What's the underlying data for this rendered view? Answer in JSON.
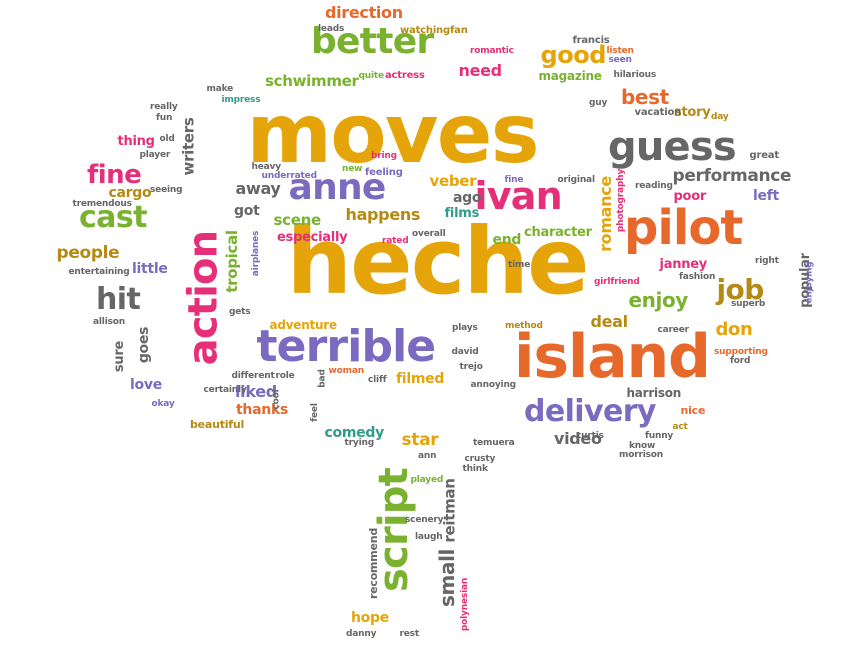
{
  "palette": {
    "yellow": "#e5a50a",
    "gold": "#b58a12",
    "orange": "#e6692b",
    "green": "#7ab230",
    "purple": "#7b6bc0",
    "pink": "#e52f78",
    "gray": "#666666",
    "teal": "#2f9c8c",
    "brown": "#a07a2a"
  },
  "words": [
    {
      "text": "moves",
      "color": "yellow"
    },
    {
      "text": "heche",
      "color": "yellow"
    },
    {
      "text": "island",
      "color": "orange"
    },
    {
      "text": "action",
      "color": "pink"
    },
    {
      "text": "pilot",
      "color": "orange"
    },
    {
      "text": "terrible",
      "color": "purple"
    },
    {
      "text": "better",
      "color": "green"
    },
    {
      "text": "guess",
      "color": "gray"
    },
    {
      "text": "anne",
      "color": "purple"
    },
    {
      "text": "ivan",
      "color": "pink"
    },
    {
      "text": "delivery",
      "color": "purple"
    },
    {
      "text": "script",
      "color": "green"
    },
    {
      "text": "fine",
      "color": "pink"
    },
    {
      "text": "cast",
      "color": "green"
    },
    {
      "text": "hit",
      "color": "gray"
    },
    {
      "text": "job",
      "color": "gold"
    },
    {
      "text": "good",
      "color": "yellow"
    },
    {
      "text": "direction",
      "color": "orange"
    },
    {
      "text": "schwimmer",
      "color": "green"
    },
    {
      "text": "need",
      "color": "pink"
    },
    {
      "text": "magazine",
      "color": "green"
    },
    {
      "text": "best",
      "color": "orange"
    },
    {
      "text": "story",
      "color": "gold"
    },
    {
      "text": "performance",
      "color": "gray"
    },
    {
      "text": "left",
      "color": "purple"
    },
    {
      "text": "poor",
      "color": "pink"
    },
    {
      "text": "romance",
      "color": "yellow"
    },
    {
      "text": "veber",
      "color": "yellow"
    },
    {
      "text": "ago",
      "color": "gray"
    },
    {
      "text": "films",
      "color": "teal"
    },
    {
      "text": "character",
      "color": "green"
    },
    {
      "text": "end",
      "color": "green"
    },
    {
      "text": "away",
      "color": "gray"
    },
    {
      "text": "got",
      "color": "gray"
    },
    {
      "text": "scene",
      "color": "green"
    },
    {
      "text": "happens",
      "color": "gold"
    },
    {
      "text": "especially",
      "color": "pink"
    },
    {
      "text": "people",
      "color": "gold"
    },
    {
      "text": "little",
      "color": "purple"
    },
    {
      "text": "cargo",
      "color": "gold"
    },
    {
      "text": "thing",
      "color": "pink"
    },
    {
      "text": "writers",
      "color": "gray"
    },
    {
      "text": "tropical",
      "color": "green"
    },
    {
      "text": "enjoy",
      "color": "green"
    },
    {
      "text": "janney",
      "color": "pink"
    },
    {
      "text": "deal",
      "color": "gold"
    },
    {
      "text": "don",
      "color": "yellow"
    },
    {
      "text": "goes",
      "color": "gray"
    },
    {
      "text": "sure",
      "color": "gray"
    },
    {
      "text": "love",
      "color": "purple"
    },
    {
      "text": "liked",
      "color": "purple"
    },
    {
      "text": "thanks",
      "color": "orange"
    },
    {
      "text": "adventure",
      "color": "yellow"
    },
    {
      "text": "filmed",
      "color": "yellow"
    },
    {
      "text": "comedy",
      "color": "teal"
    },
    {
      "text": "star",
      "color": "yellow"
    },
    {
      "text": "video",
      "color": "gray"
    },
    {
      "text": "harrison",
      "color": "gray"
    },
    {
      "text": "nice",
      "color": "orange"
    },
    {
      "text": "hope",
      "color": "yellow"
    },
    {
      "text": "small",
      "color": "gray"
    },
    {
      "text": "reitman",
      "color": "gray"
    },
    {
      "text": "beautiful",
      "color": "gold"
    },
    {
      "text": "popular",
      "color": "gray"
    },
    {
      "text": "recommend",
      "color": "gray"
    },
    {
      "text": "fan",
      "color": "gold"
    },
    {
      "text": "watching",
      "color": "gold"
    },
    {
      "text": "leads",
      "color": "gray"
    },
    {
      "text": "romantic",
      "color": "pink"
    },
    {
      "text": "francis",
      "color": "gray"
    },
    {
      "text": "listen",
      "color": "orange"
    },
    {
      "text": "seen",
      "color": "purple"
    },
    {
      "text": "hilarious",
      "color": "gray"
    },
    {
      "text": "quite",
      "color": "green"
    },
    {
      "text": "actress",
      "color": "pink"
    },
    {
      "text": "make",
      "color": "gray"
    },
    {
      "text": "impress",
      "color": "teal"
    },
    {
      "text": "really",
      "color": "gray"
    },
    {
      "text": "fun",
      "color": "gray"
    },
    {
      "text": "guy",
      "color": "gray"
    },
    {
      "text": "vacation",
      "color": "gray"
    },
    {
      "text": "day",
      "color": "gold"
    },
    {
      "text": "great",
      "color": "gray"
    },
    {
      "text": "old",
      "color": "gray"
    },
    {
      "text": "player",
      "color": "gray"
    },
    {
      "text": "heavy",
      "color": "gray"
    },
    {
      "text": "new",
      "color": "green"
    },
    {
      "text": "feeling",
      "color": "purple"
    },
    {
      "text": "bring",
      "color": "pink"
    },
    {
      "text": "underrated",
      "color": "purple"
    },
    {
      "text": "seeing",
      "color": "gray"
    },
    {
      "text": "tremendous",
      "color": "gray"
    },
    {
      "text": "original",
      "color": "gray"
    },
    {
      "text": "photography",
      "color": "pink"
    },
    {
      "text": "reading",
      "color": "gray"
    },
    {
      "text": "fine",
      "color": "purple"
    },
    {
      "text": "time",
      "color": "gray"
    },
    {
      "text": "rated",
      "color": "pink"
    },
    {
      "text": "overall",
      "color": "gray"
    },
    {
      "text": "airplanes",
      "color": "purple"
    },
    {
      "text": "entertaining",
      "color": "gray"
    },
    {
      "text": "girlfriend",
      "color": "pink"
    },
    {
      "text": "fashion",
      "color": "gray"
    },
    {
      "text": "right",
      "color": "gray"
    },
    {
      "text": "enjoying",
      "color": "purple"
    },
    {
      "text": "superb",
      "color": "gray"
    },
    {
      "text": "career",
      "color": "gray"
    },
    {
      "text": "supporting",
      "color": "orange"
    },
    {
      "text": "ford",
      "color": "gray"
    },
    {
      "text": "allison",
      "color": "gray"
    },
    {
      "text": "gets",
      "color": "gray"
    },
    {
      "text": "plays",
      "color": "gray"
    },
    {
      "text": "method",
      "color": "gold"
    },
    {
      "text": "david",
      "color": "gray"
    },
    {
      "text": "trejo",
      "color": "gray"
    },
    {
      "text": "annoying",
      "color": "gray"
    },
    {
      "text": "different",
      "color": "gray"
    },
    {
      "text": "role",
      "color": "gray"
    },
    {
      "text": "bad",
      "color": "gray"
    },
    {
      "text": "woman",
      "color": "orange"
    },
    {
      "text": "cliff",
      "color": "gray"
    },
    {
      "text": "certainly",
      "color": "gray"
    },
    {
      "text": "cool",
      "color": "gray"
    },
    {
      "text": "okay",
      "color": "purple"
    },
    {
      "text": "feel",
      "color": "gray"
    },
    {
      "text": "trying",
      "color": "gray"
    },
    {
      "text": "ann",
      "color": "gray"
    },
    {
      "text": "curtis",
      "color": "gray"
    },
    {
      "text": "funny",
      "color": "gray"
    },
    {
      "text": "act",
      "color": "gold"
    },
    {
      "text": "know",
      "color": "gray"
    },
    {
      "text": "morrison",
      "color": "gray"
    },
    {
      "text": "temuera",
      "color": "gray"
    },
    {
      "text": "crusty",
      "color": "gray"
    },
    {
      "text": "think",
      "color": "gray"
    },
    {
      "text": "played",
      "color": "green"
    },
    {
      "text": "scenery",
      "color": "gray"
    },
    {
      "text": "laugh",
      "color": "gray"
    },
    {
      "text": "polynesian",
      "color": "pink"
    },
    {
      "text": "danny",
      "color": "gray"
    },
    {
      "text": "rest",
      "color": "gray"
    }
  ]
}
